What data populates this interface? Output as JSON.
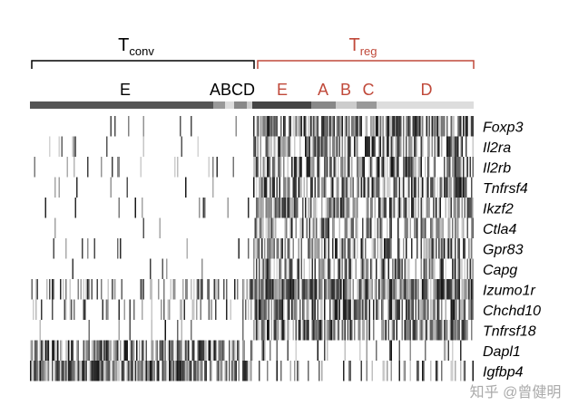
{
  "groups": [
    {
      "symbol": "T",
      "subscript": "conv",
      "clusters": [
        "E",
        "ABCD"
      ]
    },
    {
      "symbol": "T",
      "subscript": "reg",
      "clusters": [
        "E",
        "A",
        "B",
        "C",
        "D"
      ]
    }
  ],
  "genes": [
    "Foxp3",
    "Il2ra",
    "Il2rb",
    "Tnfrsf4",
    "Ikzf2",
    "Ctla4",
    "Gpr83",
    "Capg",
    "Izumo1r",
    "Chchd10",
    "Tnfrsf18",
    "Dapl1",
    "Igfbp4"
  ],
  "watermark": "知乎 @曾健明"
}
